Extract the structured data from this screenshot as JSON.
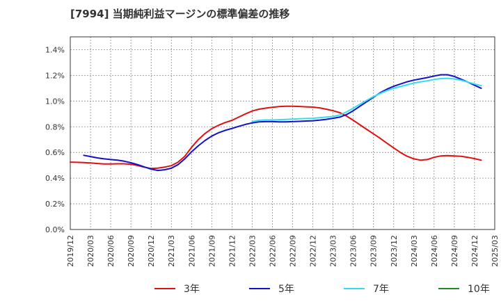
{
  "chart_data": {
    "type": "line",
    "title": "[7994]  当期純利益マージンの標準偏差の推移",
    "xlabel": "",
    "ylabel": "",
    "x_ticks": [
      "2019/12",
      "2020/03",
      "2020/06",
      "2020/09",
      "2020/12",
      "2021/03",
      "2021/06",
      "2021/09",
      "2021/12",
      "2022/03",
      "2022/06",
      "2022/09",
      "2022/12",
      "2023/03",
      "2023/06",
      "2023/09",
      "2023/12",
      "2024/03",
      "2024/06",
      "2024/09",
      "2024/12",
      "2025/03"
    ],
    "y_ticks": [
      "0.0%",
      "0.2%",
      "0.4%",
      "0.6%",
      "0.8%",
      "1.0%",
      "1.2%",
      "1.4%"
    ],
    "ylim": [
      0,
      1.5
    ],
    "grid": true,
    "legend_position": "bottom",
    "series": [
      {
        "name": "3年",
        "color": "#dd1111",
        "points": [
          [
            "2019/12",
            0.525
          ],
          [
            "2020/01",
            0.523
          ],
          [
            "2020/02",
            0.521
          ],
          [
            "2020/03",
            0.518
          ],
          [
            "2020/04",
            0.514
          ],
          [
            "2020/05",
            0.51
          ],
          [
            "2020/06",
            0.51
          ],
          [
            "2020/07",
            0.512
          ],
          [
            "2020/08",
            0.512
          ],
          [
            "2020/09",
            0.508
          ],
          [
            "2020/10",
            0.498
          ],
          [
            "2020/11",
            0.485
          ],
          [
            "2020/12",
            0.475
          ],
          [
            "2021/01",
            0.478
          ],
          [
            "2021/02",
            0.486
          ],
          [
            "2021/03",
            0.497
          ],
          [
            "2021/04",
            0.525
          ],
          [
            "2021/05",
            0.57
          ],
          [
            "2021/06",
            0.64
          ],
          [
            "2021/07",
            0.7
          ],
          [
            "2021/08",
            0.748
          ],
          [
            "2021/09",
            0.785
          ],
          [
            "2021/10",
            0.812
          ],
          [
            "2021/11",
            0.833
          ],
          [
            "2021/12",
            0.85
          ],
          [
            "2022/01",
            0.875
          ],
          [
            "2022/02",
            0.9
          ],
          [
            "2022/03",
            0.922
          ],
          [
            "2022/04",
            0.937
          ],
          [
            "2022/05",
            0.945
          ],
          [
            "2022/06",
            0.952
          ],
          [
            "2022/07",
            0.957
          ],
          [
            "2022/08",
            0.96
          ],
          [
            "2022/09",
            0.96
          ],
          [
            "2022/10",
            0.958
          ],
          [
            "2022/11",
            0.955
          ],
          [
            "2022/12",
            0.953
          ],
          [
            "2023/01",
            0.947
          ],
          [
            "2023/02",
            0.937
          ],
          [
            "2023/03",
            0.925
          ],
          [
            "2023/04",
            0.91
          ],
          [
            "2023/05",
            0.883
          ],
          [
            "2023/06",
            0.85
          ],
          [
            "2023/07",
            0.815
          ],
          [
            "2023/08",
            0.78
          ],
          [
            "2023/09",
            0.745
          ],
          [
            "2023/10",
            0.71
          ],
          [
            "2023/11",
            0.672
          ],
          [
            "2023/12",
            0.635
          ],
          [
            "2024/01",
            0.6
          ],
          [
            "2024/02",
            0.57
          ],
          [
            "2024/03",
            0.55
          ],
          [
            "2024/04",
            0.54
          ],
          [
            "2024/05",
            0.545
          ],
          [
            "2024/06",
            0.562
          ],
          [
            "2024/07",
            0.573
          ],
          [
            "2024/08",
            0.575
          ],
          [
            "2024/09",
            0.573
          ],
          [
            "2024/10",
            0.57
          ],
          [
            "2024/11",
            0.562
          ],
          [
            "2024/12",
            0.552
          ],
          [
            "2025/01",
            0.54
          ]
        ]
      },
      {
        "name": "5年",
        "color": "#1111cc",
        "points": [
          [
            "2020/02",
            0.578
          ],
          [
            "2020/03",
            0.568
          ],
          [
            "2020/04",
            0.558
          ],
          [
            "2020/05",
            0.55
          ],
          [
            "2020/06",
            0.545
          ],
          [
            "2020/07",
            0.54
          ],
          [
            "2020/08",
            0.532
          ],
          [
            "2020/09",
            0.52
          ],
          [
            "2020/10",
            0.505
          ],
          [
            "2020/11",
            0.487
          ],
          [
            "2020/12",
            0.47
          ],
          [
            "2021/01",
            0.46
          ],
          [
            "2021/02",
            0.465
          ],
          [
            "2021/03",
            0.477
          ],
          [
            "2021/04",
            0.505
          ],
          [
            "2021/05",
            0.55
          ],
          [
            "2021/06",
            0.605
          ],
          [
            "2021/07",
            0.652
          ],
          [
            "2021/08",
            0.693
          ],
          [
            "2021/09",
            0.727
          ],
          [
            "2021/10",
            0.753
          ],
          [
            "2021/11",
            0.772
          ],
          [
            "2021/12",
            0.787
          ],
          [
            "2022/01",
            0.803
          ],
          [
            "2022/02",
            0.818
          ],
          [
            "2022/03",
            0.83
          ],
          [
            "2022/04",
            0.838
          ],
          [
            "2022/05",
            0.84
          ],
          [
            "2022/06",
            0.84
          ],
          [
            "2022/07",
            0.838
          ],
          [
            "2022/08",
            0.838
          ],
          [
            "2022/09",
            0.84
          ],
          [
            "2022/10",
            0.842
          ],
          [
            "2022/11",
            0.845
          ],
          [
            "2022/12",
            0.847
          ],
          [
            "2023/01",
            0.852
          ],
          [
            "2023/02",
            0.858
          ],
          [
            "2023/03",
            0.866
          ],
          [
            "2023/04",
            0.875
          ],
          [
            "2023/05",
            0.895
          ],
          [
            "2023/06",
            0.925
          ],
          [
            "2023/07",
            0.96
          ],
          [
            "2023/08",
            0.995
          ],
          [
            "2023/09",
            1.03
          ],
          [
            "2023/10",
            1.065
          ],
          [
            "2023/11",
            1.093
          ],
          [
            "2023/12",
            1.115
          ],
          [
            "2024/01",
            1.133
          ],
          [
            "2024/02",
            1.15
          ],
          [
            "2024/03",
            1.163
          ],
          [
            "2024/04",
            1.173
          ],
          [
            "2024/05",
            1.183
          ],
          [
            "2024/06",
            1.195
          ],
          [
            "2024/07",
            1.205
          ],
          [
            "2024/08",
            1.205
          ],
          [
            "2024/09",
            1.192
          ],
          [
            "2024/10",
            1.17
          ],
          [
            "2024/11",
            1.148
          ],
          [
            "2024/12",
            1.123
          ],
          [
            "2025/01",
            1.1
          ]
        ]
      },
      {
        "name": "7年",
        "color": "#33ddee",
        "points": [
          [
            "2022/03",
            0.84
          ],
          [
            "2022/04",
            0.85
          ],
          [
            "2022/05",
            0.853
          ],
          [
            "2022/06",
            0.853
          ],
          [
            "2022/07",
            0.855
          ],
          [
            "2022/08",
            0.857
          ],
          [
            "2022/09",
            0.86
          ],
          [
            "2022/10",
            0.862
          ],
          [
            "2022/11",
            0.864
          ],
          [
            "2022/12",
            0.866
          ],
          [
            "2023/01",
            0.87
          ],
          [
            "2023/02",
            0.875
          ],
          [
            "2023/03",
            0.88
          ],
          [
            "2023/04",
            0.892
          ],
          [
            "2023/05",
            0.915
          ],
          [
            "2023/06",
            0.945
          ],
          [
            "2023/07",
            0.975
          ],
          [
            "2023/08",
            1.005
          ],
          [
            "2023/09",
            1.035
          ],
          [
            "2023/10",
            1.06
          ],
          [
            "2023/11",
            1.082
          ],
          [
            "2023/12",
            1.1
          ],
          [
            "2024/01",
            1.113
          ],
          [
            "2024/02",
            1.127
          ],
          [
            "2024/03",
            1.14
          ],
          [
            "2024/04",
            1.15
          ],
          [
            "2024/05",
            1.158
          ],
          [
            "2024/06",
            1.168
          ],
          [
            "2024/07",
            1.175
          ],
          [
            "2024/08",
            1.177
          ],
          [
            "2024/09",
            1.173
          ],
          [
            "2024/10",
            1.162
          ],
          [
            "2024/11",
            1.148
          ],
          [
            "2024/12",
            1.133
          ],
          [
            "2025/01",
            1.12
          ]
        ]
      },
      {
        "name": "10年",
        "color": "#228822",
        "points": []
      }
    ]
  }
}
